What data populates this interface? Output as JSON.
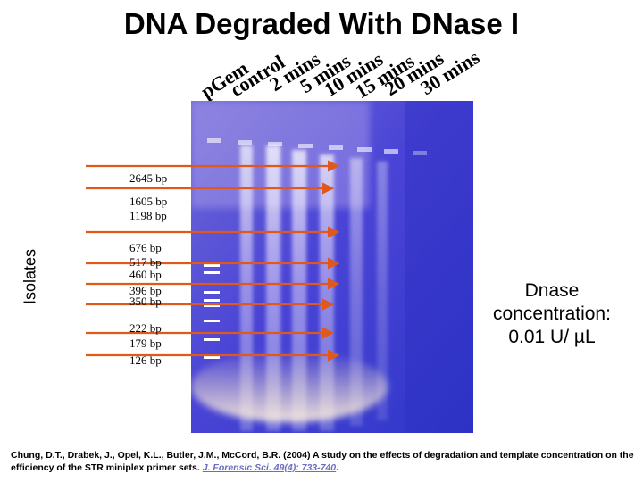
{
  "title": "DNA Degraded With DNase I",
  "lanes": [
    "pGem",
    "control",
    "2 mins",
    "5 mins",
    "10 mins",
    "15 mins",
    "20 mins",
    "30 mins"
  ],
  "side_label": "Isolates",
  "bp_labels": [
    "2645 bp",
    "1605 bp",
    "1198 bp",
    "676 bp",
    "517 bp",
    "460 bp",
    "396 bp",
    "350 bp",
    "222 bp",
    "179 bp",
    "126 bp"
  ],
  "concentration": {
    "line1": "Dnase",
    "line2": "concentration:",
    "line3": "0.01 U/ µL"
  },
  "citation": {
    "text": "Chung, D.T., Drabek, J., Opel, K.L., Butler, J.M., McCord, B.R. (2004) A study on the effects of degradation and template concentration on the efficiency of the STR miniplex primer sets.",
    "link": "J. Forensic Sci. 49(4): 733-740",
    "end": "."
  },
  "colors": {
    "gel_bg": "#3a3ed0",
    "arrow": "#e0581c",
    "band": "#ffffff"
  }
}
